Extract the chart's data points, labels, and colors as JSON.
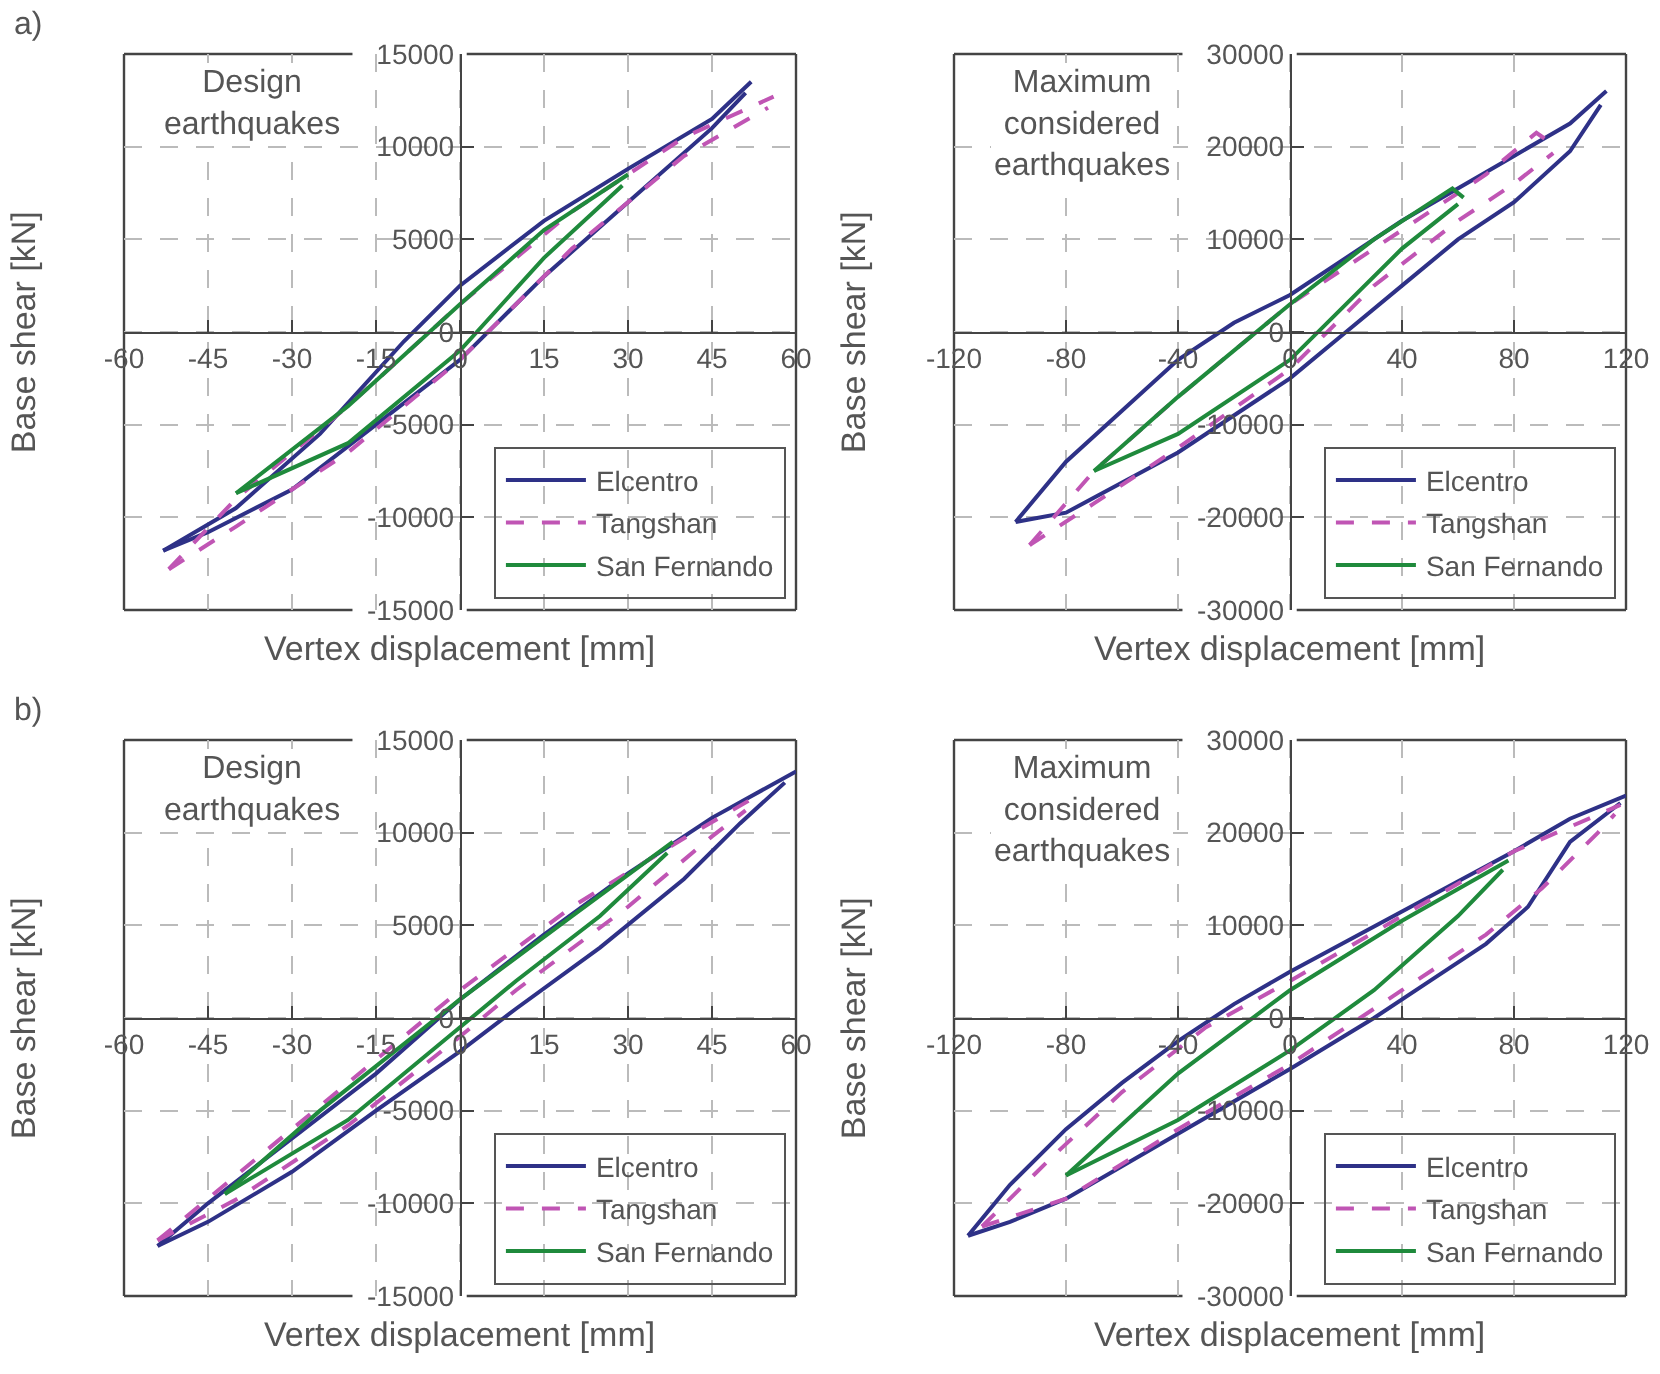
{
  "chart_data": [
    {
      "type": "line",
      "title": "a)",
      "annotations": [
        "Design earthquakes"
      ],
      "xlabel": "Vertex displacement [mm]",
      "ylabel": "Base shear [kN]",
      "xlim": [
        -60,
        60
      ],
      "ylim": [
        -15000,
        15000
      ],
      "xticks": [
        -60,
        -45,
        -30,
        -15,
        0,
        15,
        30,
        45,
        60
      ],
      "yticks": [
        -15000,
        -10000,
        -5000,
        0,
        5000,
        10000,
        15000
      ],
      "grid": true,
      "legend": "bottom right",
      "marker": "none",
      "series": [
        {
          "name": "Elcentro",
          "color": "#2e3187",
          "line_style": "solid",
          "x": [
            -53,
            -40,
            -25,
            -10,
            0,
            15,
            30,
            45,
            52
          ],
          "values": [
            -11800,
            -9500,
            -5500,
            -500,
            2500,
            6000,
            8800,
            11500,
            13500
          ]
        },
        {
          "color": "#2e3187",
          "line_style": "solid",
          "x": [
            -53,
            -45,
            -30,
            -15,
            0,
            15,
            30,
            45,
            51
          ],
          "values": [
            -11800,
            -10800,
            -8500,
            -5000,
            -1500,
            3000,
            7000,
            11000,
            12900
          ]
        },
        {
          "name": "Tangshan",
          "color": "#c055b4",
          "line_style": "dashed",
          "x": [
            -52,
            -40,
            -20,
            0,
            20,
            40,
            56
          ],
          "values": [
            -12800,
            -9000,
            -4000,
            1500,
            6500,
            10500,
            12700
          ]
        },
        {
          "color": "#c055b4",
          "line_style": "dashed",
          "x": [
            -52,
            -40,
            -20,
            0,
            20,
            40,
            55
          ],
          "values": [
            -12800,
            -10500,
            -6500,
            -1500,
            4500,
            9500,
            12100
          ]
        },
        {
          "name": "San Fernando",
          "color": "#1f8a3c",
          "line_style": "solid",
          "x": [
            -40,
            -20,
            0,
            15,
            30
          ],
          "values": [
            -8700,
            -4000,
            1500,
            5500,
            8500
          ]
        },
        {
          "color": "#1f8a3c",
          "line_style": "solid",
          "x": [
            -40,
            -20,
            0,
            15,
            29
          ],
          "values": [
            -8700,
            -6000,
            -1000,
            4000,
            7900
          ]
        }
      ]
    },
    {
      "type": "line",
      "annotations": [
        "Maximum considered earthquakes"
      ],
      "xlabel": "Vertex displacement [mm]",
      "ylabel": "Base shear [kN]",
      "xlim": [
        -120,
        120
      ],
      "ylim": [
        -30000,
        30000
      ],
      "xticks": [
        -120,
        -80,
        -40,
        0,
        40,
        80,
        120
      ],
      "yticks": [
        -30000,
        -20000,
        -10000,
        0,
        10000,
        20000,
        30000
      ],
      "grid": true,
      "legend": "bottom right",
      "marker": "none",
      "series": [
        {
          "name": "Elcentro",
          "color": "#2e3187",
          "line_style": "solid",
          "x": [
            -98,
            -80,
            -60,
            -40,
            -20,
            0,
            40,
            80,
            100,
            113
          ],
          "values": [
            -20500,
            -14000,
            -8500,
            -3000,
            1000,
            4000,
            12000,
            19000,
            22500,
            26000
          ]
        },
        {
          "color": "#2e3187",
          "line_style": "solid",
          "x": [
            -98,
            -80,
            -40,
            0,
            20,
            40,
            60,
            80,
            100,
            111
          ],
          "values": [
            -20500,
            -19500,
            -13000,
            -5000,
            0,
            5000,
            10000,
            14000,
            19500,
            24500
          ]
        },
        {
          "name": "Tangshan",
          "color": "#c055b4",
          "line_style": "dashed",
          "x": [
            -93,
            -70,
            -40,
            0,
            40,
            70,
            88,
            95
          ],
          "values": [
            -23000,
            -15000,
            -7000,
            3000,
            11000,
            17000,
            21500,
            20000
          ]
        },
        {
          "color": "#c055b4",
          "line_style": "dashed",
          "x": [
            -93,
            -70,
            -40,
            0,
            30,
            60,
            80,
            94
          ],
          "values": [
            -23000,
            -18500,
            -12500,
            -4000,
            5000,
            12000,
            16000,
            19300
          ]
        },
        {
          "name": "San Fernando",
          "color": "#1f8a3c",
          "line_style": "solid",
          "x": [
            -70,
            -40,
            0,
            30,
            58,
            62
          ],
          "values": [
            -15000,
            -7000,
            3000,
            10000,
            15500,
            14500
          ]
        },
        {
          "color": "#1f8a3c",
          "line_style": "solid",
          "x": [
            -70,
            -40,
            0,
            40,
            60
          ],
          "values": [
            -15000,
            -11000,
            -3000,
            9000,
            13800
          ]
        }
      ]
    },
    {
      "type": "line",
      "title": "b)",
      "annotations": [
        "Design earthquakes"
      ],
      "xlabel": "Vertex displacement [mm]",
      "ylabel": "Base shear [kN]",
      "xlim": [
        -60,
        60
      ],
      "ylim": [
        -15000,
        15000
      ],
      "xticks": [
        -60,
        -45,
        -30,
        -15,
        0,
        15,
        30,
        45,
        60
      ],
      "yticks": [
        -15000,
        -10000,
        -5000,
        0,
        5000,
        10000,
        15000
      ],
      "grid": true,
      "legend": "bottom right",
      "marker": "none",
      "series": [
        {
          "name": "Elcentro",
          "color": "#2e3187",
          "line_style": "solid",
          "x": [
            -54,
            -45,
            -30,
            -15,
            0,
            15,
            30,
            45,
            60
          ],
          "values": [
            -12300,
            -10000,
            -6500,
            -3000,
            1000,
            4500,
            7800,
            10800,
            13300
          ]
        },
        {
          "color": "#2e3187",
          "line_style": "solid",
          "x": [
            -54,
            -45,
            -30,
            -15,
            0,
            10,
            25,
            40,
            50,
            58
          ],
          "values": [
            -12300,
            -11000,
            -8300,
            -5000,
            -1800,
            500,
            3800,
            7500,
            10500,
            12700
          ]
        },
        {
          "name": "Tangshan",
          "color": "#c055b4",
          "line_style": "dashed",
          "x": [
            -54,
            -40,
            -20,
            0,
            20,
            40,
            52
          ],
          "values": [
            -12000,
            -8500,
            -3500,
            1500,
            6000,
            9700,
            11800
          ]
        },
        {
          "color": "#c055b4",
          "line_style": "dashed",
          "x": [
            -54,
            -40,
            -20,
            0,
            10,
            30,
            45,
            51
          ],
          "values": [
            -12000,
            -9800,
            -5800,
            -1000,
            1500,
            6000,
            9800,
            11200
          ]
        },
        {
          "name": "San Fernando",
          "color": "#1f8a3c",
          "line_style": "solid",
          "x": [
            -42,
            -25,
            0,
            20,
            38
          ],
          "values": [
            -9500,
            -5000,
            1000,
            5500,
            9500
          ]
        },
        {
          "color": "#1f8a3c",
          "line_style": "solid",
          "x": [
            -42,
            -20,
            0,
            10,
            25,
            37
          ],
          "values": [
            -9500,
            -5500,
            -500,
            2000,
            5500,
            8900
          ]
        }
      ]
    },
    {
      "type": "line",
      "annotations": [
        "Maximum considered earthquakes"
      ],
      "xlabel": "Vertex displacement [mm]",
      "ylabel": "Base shear [kN]",
      "xlim": [
        -120,
        120
      ],
      "ylim": [
        -30000,
        30000
      ],
      "xticks": [
        -120,
        -80,
        -40,
        0,
        40,
        80,
        120
      ],
      "yticks": [
        -30000,
        -20000,
        -10000,
        0,
        10000,
        20000,
        30000
      ],
      "grid": true,
      "legend": "bottom right",
      "marker": "none",
      "series": [
        {
          "name": "Elcentro",
          "color": "#2e3187",
          "line_style": "solid",
          "x": [
            -115,
            -100,
            -80,
            -60,
            -40,
            -20,
            0,
            40,
            80,
            100,
            120
          ],
          "values": [
            -23500,
            -18000,
            -12000,
            -7000,
            -2500,
            1500,
            5000,
            11500,
            18000,
            21500,
            24000
          ]
        },
        {
          "color": "#2e3187",
          "line_style": "solid",
          "x": [
            -115,
            -100,
            -80,
            -40,
            0,
            30,
            50,
            70,
            85,
            100,
            118
          ],
          "values": [
            -23500,
            -22000,
            -19500,
            -12500,
            -5500,
            0,
            4000,
            8000,
            12000,
            19000,
            23200
          ]
        },
        {
          "name": "Tangshan",
          "color": "#c055b4",
          "line_style": "dashed",
          "x": [
            -110,
            -85,
            -60,
            -30,
            0,
            40,
            80,
            118
          ],
          "values": [
            -22500,
            -15000,
            -8000,
            -1000,
            4000,
            11000,
            18000,
            23000
          ]
        },
        {
          "color": "#c055b4",
          "line_style": "dashed",
          "x": [
            -110,
            -80,
            -40,
            0,
            20,
            40,
            70,
            90,
            110,
            116
          ],
          "values": [
            -22500,
            -19500,
            -12000,
            -5000,
            -1000,
            3000,
            9000,
            14000,
            20000,
            22000
          ]
        },
        {
          "name": "San Fernando",
          "color": "#1f8a3c",
          "line_style": "solid",
          "x": [
            -80,
            -40,
            0,
            40,
            78
          ],
          "values": [
            -17000,
            -6000,
            3000,
            10500,
            17000
          ]
        },
        {
          "color": "#1f8a3c",
          "line_style": "solid",
          "x": [
            -80,
            -40,
            0,
            30,
            60,
            76
          ],
          "values": [
            -17000,
            -11000,
            -3500,
            3000,
            11000,
            16000
          ]
        }
      ]
    }
  ]
}
